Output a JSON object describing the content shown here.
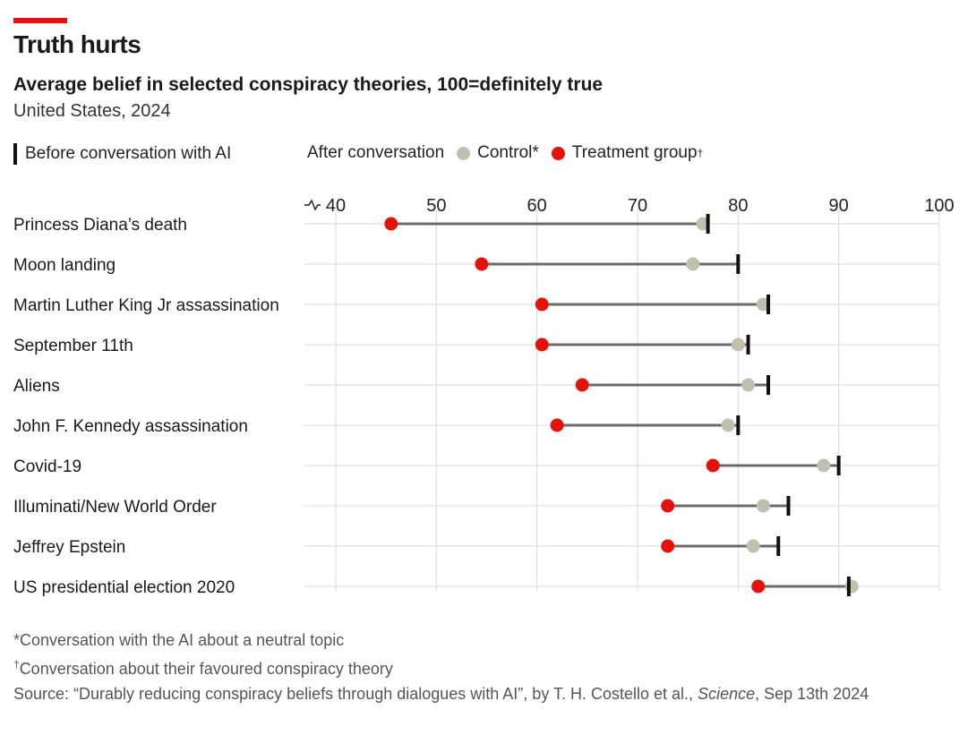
{
  "header": {
    "title": "Truth hurts",
    "subtitle": "Average belief in selected conspiracy theories, 100=definitely true",
    "region": "United States, 2024"
  },
  "legend": {
    "before_label": "Before conversation with AI",
    "after_label": "After conversation",
    "control_label": "Control*",
    "treatment_label": "Treatment group",
    "treatment_mark": "†"
  },
  "colors": {
    "treatment": "#e3120b",
    "control": "#c1bfae",
    "before": "#111111",
    "connector": "#6b6b6b",
    "grid": "#d9d9d9"
  },
  "footnotes": {
    "control_note": "*Conversation with the AI about a neutral topic",
    "treatment_mark": "†",
    "treatment_note": "Conversation about their favoured conspiracy theory",
    "source_prefix": "Source: “Durably reducing conspiracy beliefs through dialogues with AI”, by T. H. Costello et al., ",
    "source_journal": "Science",
    "source_suffix": ", Sep 13th 2024"
  },
  "chart_data": {
    "type": "dot-range",
    "title": "Average belief in selected conspiracy theories, 100=definitely true",
    "xlim": [
      40,
      100
    ],
    "xticks": [
      40,
      50,
      60,
      70,
      80,
      90,
      100
    ],
    "axis_break": true,
    "grid": true,
    "legend_position": "top",
    "rows": [
      {
        "label": "Princess Diana’s death",
        "before": 77,
        "control": 76.5,
        "treatment": 45.5
      },
      {
        "label": "Moon landing",
        "before": 80,
        "control": 75.5,
        "treatment": 54.5
      },
      {
        "label": "Martin Luther King Jr assassination",
        "before": 83,
        "control": 82.5,
        "treatment": 60.5
      },
      {
        "label": "September 11th",
        "before": 81,
        "control": 80,
        "treatment": 60.5
      },
      {
        "label": "Aliens",
        "before": 83,
        "control": 81,
        "treatment": 64.5
      },
      {
        "label": "John F. Kennedy assassination",
        "before": 80,
        "control": 79,
        "treatment": 62
      },
      {
        "label": "Covid-19",
        "before": 90,
        "control": 88.5,
        "treatment": 77.5
      },
      {
        "label": "Illuminati/New World Order",
        "before": 85,
        "control": 82.5,
        "treatment": 73
      },
      {
        "label": "Jeffrey Epstein",
        "before": 84,
        "control": 81.5,
        "treatment": 73
      },
      {
        "label": "US presidential election 2020",
        "before": 91,
        "control": 91.3,
        "treatment": 82
      }
    ]
  }
}
